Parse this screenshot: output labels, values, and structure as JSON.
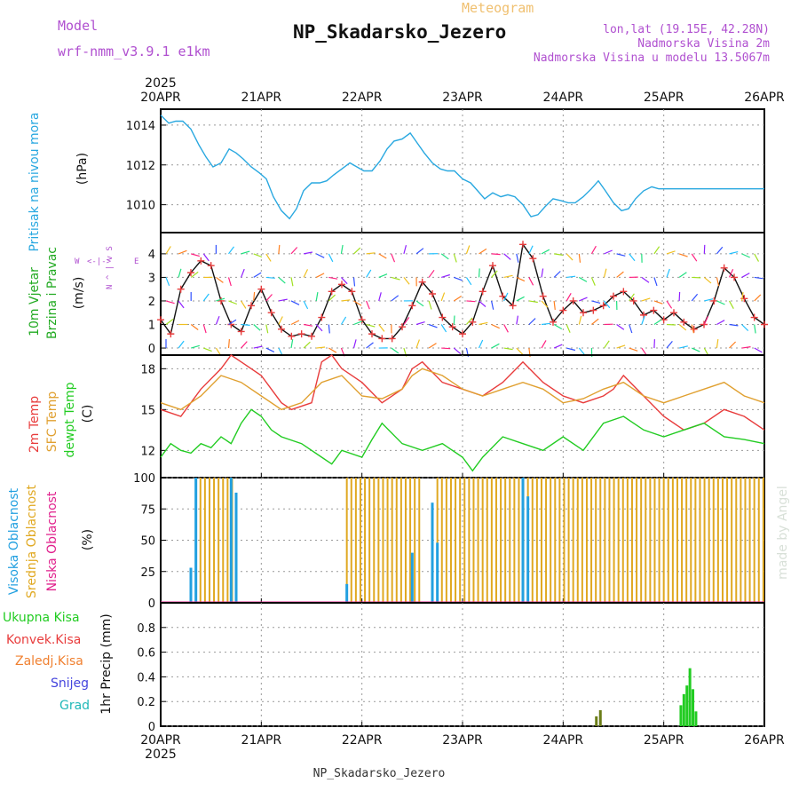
{
  "header": {
    "model_label": "Model",
    "model_name": "wrf-nmm_v3.9.1 e1km",
    "product": "Meteogram",
    "station": "NP_Skadarsko_Jezero",
    "lonlat": "lon,lat (19.15E, 42.28N)",
    "altitude": "Nadmorska Visina 2m",
    "model_altitude": "Nadmorska Visina u modelu 13.5067m",
    "footer_station": "NP_Skadarsko_Jezero",
    "credit": "made by Angel"
  },
  "colors": {
    "pressure": "#29a8e0",
    "temp2m": "#e83c3c",
    "sfc_temp": "#e0a030",
    "dewpoint": "#22cc22",
    "high_cloud": "#22a0e0",
    "mid_cloud": "#e0a820",
    "low_cloud": "#e0208c",
    "precip_total": "#22cc22",
    "precip_conv": "#e83c3c",
    "precip_frozen": "#f08030",
    "precip_snow": "#4444dd",
    "precip_grad": "#20b8b8",
    "label_purple": "#b050d0"
  },
  "chart_data": [
    {
      "type": "line",
      "panel": "pressure",
      "ylabel_left": "Pritisak na nivou mora",
      "ylabel_unit": "(hPa)",
      "x_start_label": "2025",
      "xticks": [
        "20APR",
        "21APR",
        "22APR",
        "23APR",
        "24APR",
        "25APR",
        "26APR"
      ],
      "x_start_year": "2025",
      "ylim": [
        1008.6,
        1014.8
      ],
      "yticks": [
        1010,
        1012,
        1014
      ],
      "series": [
        {
          "key": "pressure",
          "x": [
            0,
            0.08,
            0.15,
            0.22,
            0.3,
            0.38,
            0.45,
            0.52,
            0.6,
            0.68,
            0.75,
            0.82,
            0.9,
            0.98,
            1.05,
            1.12,
            1.2,
            1.28,
            1.35,
            1.42,
            1.5,
            1.58,
            1.65,
            1.72,
            1.8,
            1.88,
            1.95,
            2.02,
            2.1,
            2.18,
            2.25,
            2.32,
            2.4,
            2.48,
            2.55,
            2.62,
            2.7,
            2.78,
            2.85,
            2.92,
            3.0,
            3.08,
            3.15,
            3.22,
            3.3,
            3.38,
            3.45,
            3.52,
            3.6,
            3.68,
            3.75,
            3.82,
            3.9,
            3.98,
            4.05,
            4.12,
            4.2,
            4.28,
            4.35,
            4.42,
            4.5,
            4.58,
            4.65,
            4.72,
            4.8,
            4.88,
            4.95,
            5.02,
            5.1,
            5.18,
            5.25,
            5.32,
            5.4,
            5.48,
            5.55,
            5.62,
            5.7,
            5.78,
            5.85,
            5.92,
            6.0
          ],
          "y": [
            1014.5,
            1014.1,
            1014.2,
            1014.2,
            1013.8,
            1013.0,
            1012.4,
            1011.9,
            1012.1,
            1012.8,
            1012.6,
            1012.3,
            1011.9,
            1011.6,
            1011.3,
            1010.4,
            1009.7,
            1009.3,
            1009.8,
            1010.7,
            1011.1,
            1011.1,
            1011.2,
            1011.5,
            1011.8,
            1012.1,
            1011.9,
            1011.7,
            1011.7,
            1012.2,
            1012.8,
            1013.2,
            1013.3,
            1013.6,
            1013.1,
            1012.6,
            1012.1,
            1011.8,
            1011.7,
            1011.7,
            1011.3,
            1011.1,
            1010.7,
            1010.3,
            1010.6,
            1010.4,
            1010.5,
            1010.4,
            1010.0,
            1009.4,
            1009.5,
            1009.9,
            1010.3,
            1010.2,
            1010.1,
            1010.1,
            1010.4,
            1010.8,
            1011.2,
            1010.7,
            1010.1,
            1009.7,
            1009.8,
            1010.3,
            1010.7,
            1010.9,
            1010.8,
            1010.8,
            1010.8,
            1010.8,
            1010.8,
            1010.8,
            1010.8,
            1010.8,
            1010.8,
            1010.8,
            1010.8,
            1010.8,
            1010.8,
            1010.8,
            1010.8
          ]
        }
      ]
    },
    {
      "type": "line",
      "panel": "wind",
      "ylabel_left_1": "10m Vjetar",
      "ylabel_left_2": "Brzina i Pravac",
      "ylabel_unit": "(m/s)",
      "compass": [
        "W",
        "<-|->",
        "E"
      ],
      "compass_vertical": [
        "N",
        "^",
        "|",
        "v",
        "S"
      ],
      "ylim": [
        -0.3,
        4.9
      ],
      "yticks": [
        0,
        1,
        2,
        3,
        4
      ],
      "series": [
        {
          "key": "speed",
          "x": [
            0,
            0.1,
            0.2,
            0.3,
            0.4,
            0.5,
            0.6,
            0.7,
            0.8,
            0.9,
            1.0,
            1.1,
            1.2,
            1.3,
            1.4,
            1.5,
            1.6,
            1.7,
            1.8,
            1.9,
            2.0,
            2.1,
            2.2,
            2.3,
            2.4,
            2.5,
            2.6,
            2.7,
            2.8,
            2.9,
            3.0,
            3.1,
            3.2,
            3.3,
            3.4,
            3.5,
            3.6,
            3.7,
            3.8,
            3.9,
            4.0,
            4.1,
            4.2,
            4.3,
            4.4,
            4.5,
            4.6,
            4.7,
            4.8,
            4.9,
            5.0,
            5.1,
            5.2,
            5.3,
            5.4,
            5.5,
            5.6,
            5.7,
            5.8,
            5.9,
            6.0
          ],
          "y": [
            1.2,
            0.6,
            2.5,
            3.2,
            3.7,
            3.5,
            2.0,
            1.0,
            0.7,
            1.8,
            2.5,
            1.5,
            0.8,
            0.5,
            0.6,
            0.5,
            1.3,
            2.4,
            2.7,
            2.4,
            1.2,
            0.6,
            0.4,
            0.4,
            0.9,
            1.8,
            2.8,
            2.3,
            1.3,
            0.9,
            0.6,
            1.1,
            2.4,
            3.5,
            2.2,
            1.8,
            4.4,
            3.8,
            2.2,
            1.1,
            1.6,
            2.0,
            1.5,
            1.6,
            1.8,
            2.2,
            2.4,
            2.0,
            1.4,
            1.6,
            1.2,
            1.5,
            1.1,
            0.8,
            1.0,
            2.0,
            3.4,
            3.0,
            2.1,
            1.3,
            1.0
          ]
        }
      ]
    },
    {
      "type": "line",
      "panel": "temperature",
      "ylabel_left_1": "2m Temp",
      "ylabel_left_2": "SFC Temp",
      "ylabel_left_3": "dewpt Temp",
      "ylabel_unit": "(C)",
      "ylim": [
        10.0,
        19.0
      ],
      "yticks": [
        12,
        15,
        18
      ],
      "series": [
        {
          "key": "temp2m",
          "x": [
            0,
            0.2,
            0.4,
            0.6,
            0.7,
            0.8,
            1.0,
            1.2,
            1.3,
            1.5,
            1.6,
            1.7,
            1.8,
            2.0,
            2.2,
            2.4,
            2.5,
            2.6,
            2.8,
            3.0,
            3.2,
            3.4,
            3.6,
            3.8,
            4.0,
            4.2,
            4.4,
            4.5,
            4.6,
            4.8,
            5.0,
            5.2,
            5.4,
            5.6,
            5.8,
            6.0
          ],
          "y": [
            15.0,
            14.5,
            16.5,
            18.0,
            19.0,
            18.5,
            17.5,
            15.5,
            15.0,
            15.5,
            18.5,
            19.0,
            18.0,
            17.0,
            15.5,
            16.5,
            18.0,
            18.5,
            17.0,
            16.5,
            16.0,
            17.0,
            18.5,
            17.0,
            16.0,
            15.5,
            16.0,
            16.5,
            17.5,
            16.0,
            14.5,
            13.5,
            14.0,
            15.0,
            14.5,
            13.5
          ]
        },
        {
          "key": "sfc_temp",
          "x": [
            0,
            0.2,
            0.4,
            0.6,
            0.8,
            1.0,
            1.2,
            1.4,
            1.6,
            1.8,
            2.0,
            2.2,
            2.4,
            2.5,
            2.6,
            2.8,
            3.0,
            3.2,
            3.4,
            3.6,
            3.8,
            4.0,
            4.2,
            4.4,
            4.6,
            4.8,
            5.0,
            5.2,
            5.4,
            5.6,
            5.8,
            6.0
          ],
          "y": [
            15.5,
            15.0,
            16.0,
            17.5,
            17.0,
            16.0,
            15.0,
            15.5,
            17.0,
            17.5,
            16.0,
            15.8,
            16.5,
            17.5,
            18.0,
            17.5,
            16.5,
            16.0,
            16.5,
            17.0,
            16.5,
            15.5,
            15.8,
            16.5,
            17.0,
            16.0,
            15.5,
            16.0,
            16.5,
            17.0,
            16.0,
            15.5
          ]
        },
        {
          "key": "dewpoint",
          "x": [
            0,
            0.1,
            0.2,
            0.3,
            0.4,
            0.5,
            0.6,
            0.7,
            0.8,
            0.9,
            1.0,
            1.1,
            1.2,
            1.4,
            1.6,
            1.7,
            1.8,
            2.0,
            2.1,
            2.2,
            2.4,
            2.6,
            2.8,
            3.0,
            3.1,
            3.2,
            3.4,
            3.6,
            3.8,
            4.0,
            4.2,
            4.4,
            4.6,
            4.8,
            5.0,
            5.2,
            5.4,
            5.6,
            5.8,
            6.0
          ],
          "y": [
            11.5,
            12.5,
            12.0,
            11.8,
            12.5,
            12.2,
            13.0,
            12.5,
            14.0,
            15.0,
            14.5,
            13.5,
            13.0,
            12.5,
            11.5,
            11.0,
            12.0,
            11.5,
            12.8,
            14.0,
            12.5,
            12.0,
            12.5,
            11.5,
            10.5,
            11.5,
            13.0,
            12.5,
            12.0,
            13.0,
            12.0,
            14.0,
            14.5,
            13.5,
            13.0,
            13.5,
            14.0,
            13.0,
            12.8,
            12.5
          ]
        }
      ]
    },
    {
      "type": "bar",
      "panel": "clouds",
      "ylabel_left_1": "Visoka Oblacnost",
      "ylabel_left_2": "Srednja Oblacnost",
      "ylabel_left_3": "Niska Oblacnost",
      "ylabel_unit": "(%)",
      "ylim": [
        0,
        100
      ],
      "yticks": [
        0,
        25,
        50,
        75,
        100
      ],
      "series": [
        {
          "key": "high_cloud",
          "x": [
            0.3,
            0.35,
            0.7,
            0.75,
            1.85,
            2.5,
            2.7,
            2.75,
            3.6,
            3.65
          ],
          "values": [
            28,
            100,
            100,
            88,
            15,
            40,
            80,
            48,
            100,
            85
          ]
        },
        {
          "key": "mid_cloud",
          "x_range": [
            [
              0.35,
              0.72
            ],
            [
              1.85,
              2.6
            ],
            [
              2.75,
              6.0
            ]
          ],
          "value": 100
        }
      ]
    },
    {
      "type": "bar",
      "panel": "precip",
      "ylabel_left": "1hr Precip (mm)",
      "legend": [
        "Ukupna Kisa",
        "Konvek.Kisa",
        "Zaledj.Kisa",
        "Snijeg",
        "Grad"
      ],
      "ylim": [
        0,
        1.0
      ],
      "yticks": [
        0,
        0.2,
        0.4,
        0.6,
        0.8
      ],
      "series": [
        {
          "key": "total",
          "x": [
            4.33,
            4.37,
            5.17,
            5.2,
            5.23,
            5.26,
            5.29,
            5.32
          ],
          "values": [
            0.08,
            0.13,
            0.17,
            0.26,
            0.33,
            0.47,
            0.3,
            0.12
          ]
        }
      ]
    }
  ]
}
